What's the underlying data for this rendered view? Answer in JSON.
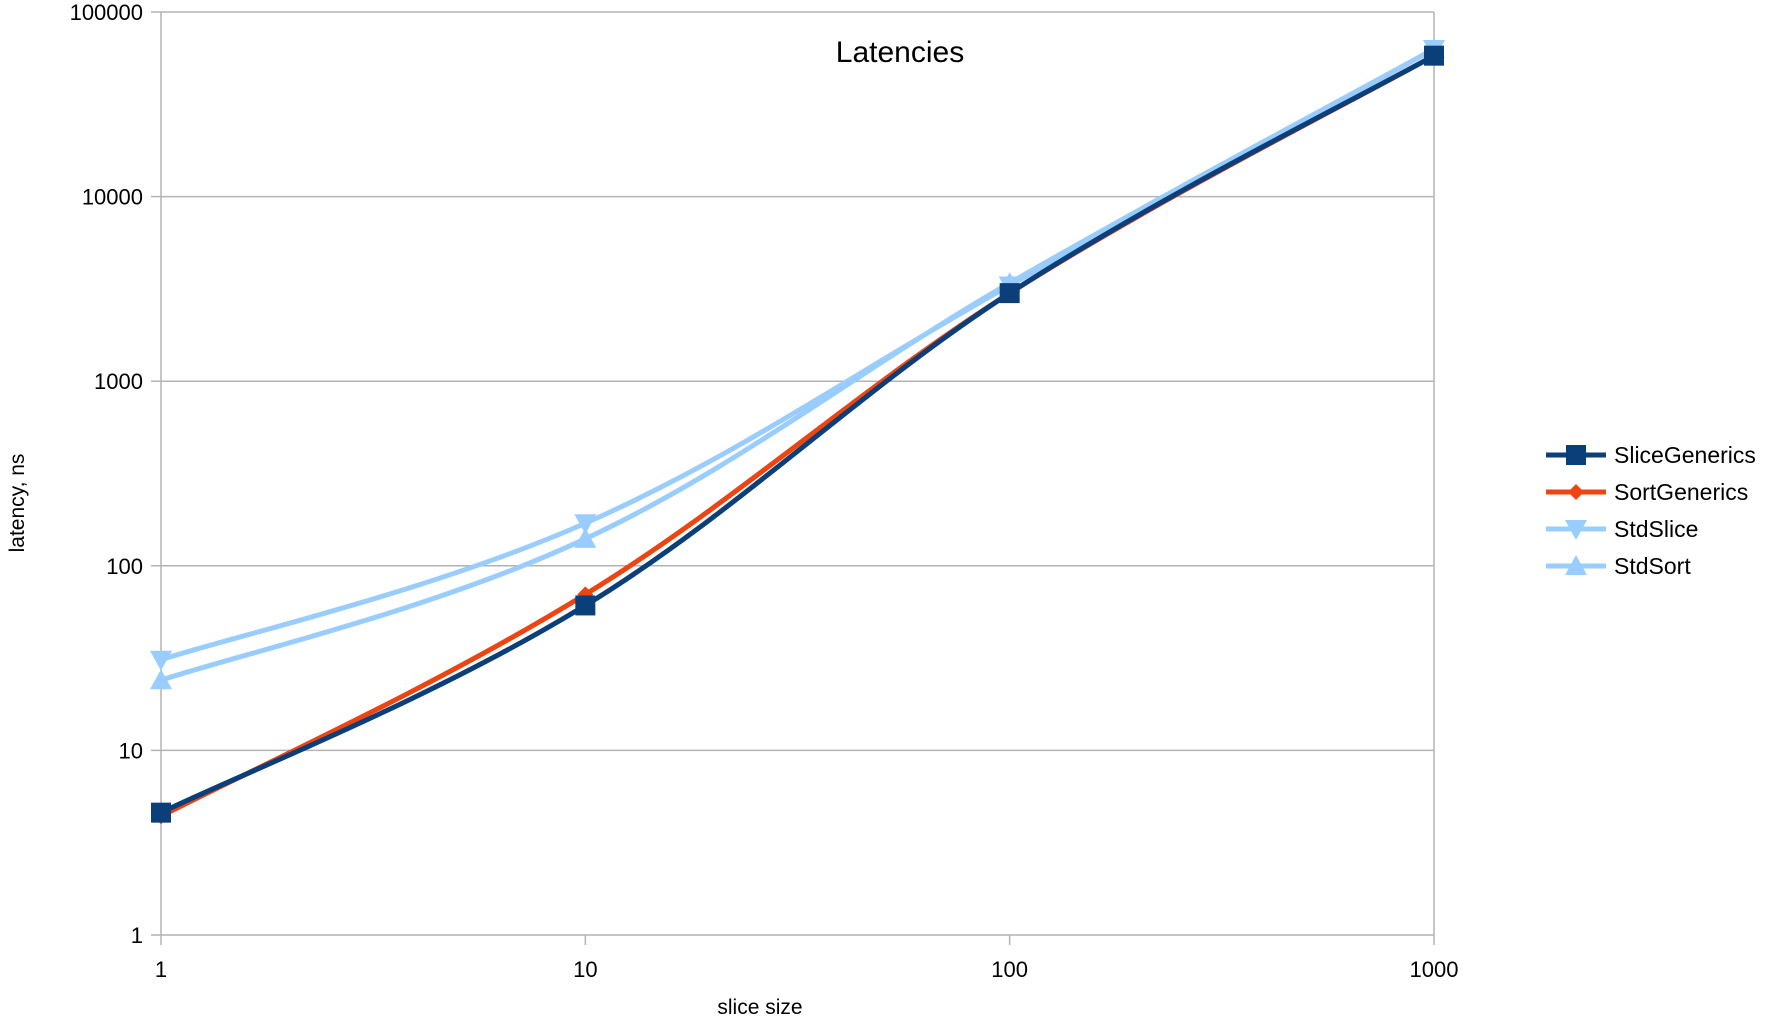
{
  "chart_data": {
    "type": "line",
    "title": "Latencies",
    "xlabel": "slice size",
    "ylabel": "latency, ns",
    "x": [
      1,
      10,
      100,
      1000
    ],
    "x_scale": "log",
    "y_scale": "log",
    "xlim": [
      1,
      1000
    ],
    "ylim": [
      1,
      100000
    ],
    "x_ticks": [
      "1",
      "10",
      "100",
      "1000"
    ],
    "y_ticks": [
      "1",
      "10",
      "100",
      "1000",
      "10000",
      "100000"
    ],
    "grid": "horizontal",
    "legend_position": "right",
    "series": [
      {
        "name": "SliceGenerics",
        "values": [
          4.6,
          61,
          3000,
          58000
        ],
        "color": "#0b3f7a",
        "marker": "square"
      },
      {
        "name": "SortGenerics",
        "values": [
          4.4,
          70,
          3000,
          58000
        ],
        "color": "#ee4411",
        "marker": "diamond"
      },
      {
        "name": "StdSlice",
        "values": [
          31,
          170,
          3300,
          63000
        ],
        "color": "#99ccff",
        "marker": "triangle-down"
      },
      {
        "name": "StdSort",
        "values": [
          24,
          140,
          3400,
          63000
        ],
        "color": "#99ccff",
        "marker": "triangle-up"
      }
    ]
  }
}
